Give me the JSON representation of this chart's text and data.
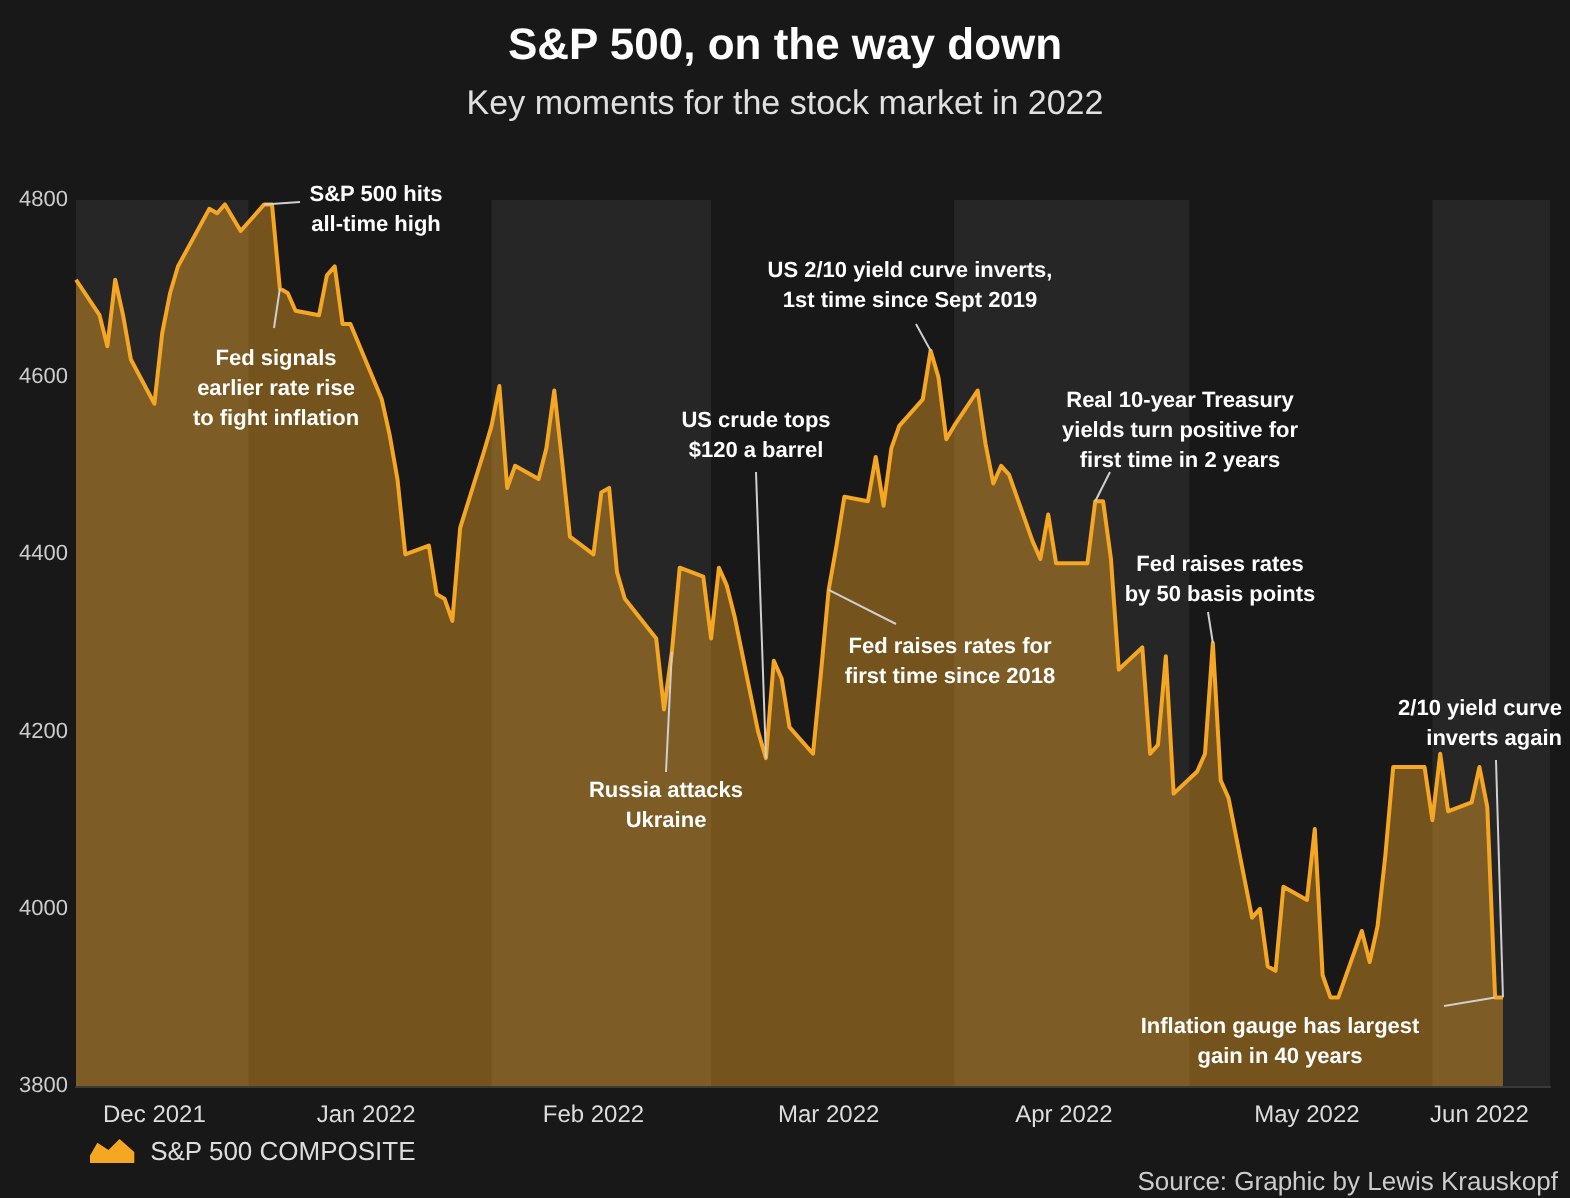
{
  "chart_data": {
    "type": "area",
    "title": "S&P 500, on the way down",
    "subtitle": "Key moments for the stock market in 2022",
    "x": [
      "2021-12-10",
      "2021-12-13",
      "2021-12-14",
      "2021-12-15",
      "2021-12-16",
      "2021-12-17",
      "2021-12-20",
      "2021-12-21",
      "2021-12-22",
      "2021-12-23",
      "2021-12-27",
      "2021-12-28",
      "2021-12-29",
      "2021-12-30",
      "2021-12-31",
      "2022-01-03",
      "2022-01-04",
      "2022-01-05",
      "2022-01-06",
      "2022-01-07",
      "2022-01-10",
      "2022-01-11",
      "2022-01-12",
      "2022-01-13",
      "2022-01-14",
      "2022-01-18",
      "2022-01-19",
      "2022-01-20",
      "2022-01-21",
      "2022-01-24",
      "2022-01-25",
      "2022-01-26",
      "2022-01-27",
      "2022-01-28",
      "2022-01-31",
      "2022-02-01",
      "2022-02-02",
      "2022-02-03",
      "2022-02-04",
      "2022-02-07",
      "2022-02-08",
      "2022-02-09",
      "2022-02-10",
      "2022-02-11",
      "2022-02-14",
      "2022-02-15",
      "2022-02-16",
      "2022-02-17",
      "2022-02-18",
      "2022-02-22",
      "2022-02-23",
      "2022-02-24",
      "2022-02-25",
      "2022-02-28",
      "2022-03-01",
      "2022-03-02",
      "2022-03-03",
      "2022-03-04",
      "2022-03-07",
      "2022-03-08",
      "2022-03-09",
      "2022-03-10",
      "2022-03-11",
      "2022-03-14",
      "2022-03-15",
      "2022-03-16",
      "2022-03-17",
      "2022-03-18",
      "2022-03-21",
      "2022-03-22",
      "2022-03-23",
      "2022-03-24",
      "2022-03-25",
      "2022-03-28",
      "2022-03-29",
      "2022-03-30",
      "2022-03-31",
      "2022-04-01",
      "2022-04-04",
      "2022-04-05",
      "2022-04-06",
      "2022-04-07",
      "2022-04-08",
      "2022-04-11",
      "2022-04-12",
      "2022-04-13",
      "2022-04-14",
      "2022-04-18",
      "2022-04-19",
      "2022-04-20",
      "2022-04-21",
      "2022-04-22",
      "2022-04-25",
      "2022-04-26",
      "2022-04-27",
      "2022-04-28",
      "2022-04-29",
      "2022-05-02",
      "2022-05-03",
      "2022-05-04",
      "2022-05-05",
      "2022-05-06",
      "2022-05-09",
      "2022-05-10",
      "2022-05-11",
      "2022-05-12",
      "2022-05-13",
      "2022-05-16",
      "2022-05-17",
      "2022-05-18",
      "2022-05-19",
      "2022-05-20",
      "2022-05-23",
      "2022-05-24",
      "2022-05-25",
      "2022-05-26",
      "2022-05-27",
      "2022-05-31",
      "2022-06-01",
      "2022-06-02",
      "2022-06-03",
      "2022-06-06",
      "2022-06-07",
      "2022-06-08",
      "2022-06-09",
      "2022-06-10"
    ],
    "series": [
      {
        "name": "S&P 500 COMPOSITE",
        "color": "#f5a623",
        "values": [
          4710,
          4670,
          4635,
          4710,
          4670,
          4620,
          4570,
          4650,
          4695,
          4725,
          4790,
          4785,
          4795,
          4780,
          4765,
          4795,
          4795,
          4700,
          4695,
          4675,
          4670,
          4715,
          4725,
          4660,
          4660,
          4575,
          4535,
          4485,
          4400,
          4410,
          4355,
          4350,
          4325,
          4430,
          4515,
          4545,
          4590,
          4475,
          4500,
          4485,
          4520,
          4585,
          4505,
          4420,
          4400,
          4470,
          4475,
          4380,
          4350,
          4305,
          4225,
          4290,
          4385,
          4375,
          4305,
          4385,
          4365,
          4330,
          4200,
          4170,
          4280,
          4260,
          4205,
          4175,
          4265,
          4360,
          4410,
          4465,
          4460,
          4510,
          4455,
          4520,
          4545,
          4575,
          4630,
          4600,
          4530,
          4545,
          4585,
          4525,
          4480,
          4500,
          4490,
          4415,
          4395,
          4445,
          4390,
          4390,
          4460,
          4460,
          4395,
          4270,
          4295,
          4175,
          4185,
          4285,
          4130,
          4155,
          4175,
          4300,
          4145,
          4125,
          3990,
          4000,
          3935,
          3930,
          4025,
          4010,
          4090,
          3925,
          3900,
          3900,
          3975,
          3940,
          3980,
          4060,
          4160,
          4160,
          4100,
          4175,
          4110,
          4120,
          4160,
          4115,
          3900,
          3900
        ]
      }
    ],
    "ylim": [
      3800,
      4800
    ],
    "yticks": [
      3800,
      4000,
      4200,
      4400,
      4600,
      4800
    ],
    "xlim": [
      "2021-12-10",
      "2022-06-16"
    ],
    "xticks": [
      {
        "value": "2021-12-20",
        "label": "Dec 2021"
      },
      {
        "value": "2022-01-16",
        "label": "Jan 2022"
      },
      {
        "value": "2022-02-14",
        "label": "Feb 2022"
      },
      {
        "value": "2022-03-16",
        "label": "Mar 2022"
      },
      {
        "value": "2022-04-15",
        "label": "Apr 2022"
      },
      {
        "value": "2022-05-16",
        "label": "May 2022"
      },
      {
        "value": "2022-06-07",
        "label": "Jun 2022"
      }
    ],
    "bands": [
      {
        "axis": "x",
        "from": "2021-12-10",
        "to": "2022-01-01",
        "color": "#262626"
      },
      {
        "axis": "x",
        "from": "2022-02-01",
        "to": "2022-03-01",
        "color": "#262626"
      },
      {
        "axis": "x",
        "from": "2022-04-01",
        "to": "2022-05-01",
        "color": "#262626"
      },
      {
        "axis": "x",
        "from": "2022-06-01",
        "to": "2022-06-16",
        "color": "#262626"
      }
    ],
    "annotations": [
      {
        "text": "S&P 500 hits\nall-time high",
        "x": "2022-01-03",
        "y": 4795
      },
      {
        "text": "Fed signals\nearlier rate rise\nto fight inflation",
        "x": "2022-01-05",
        "y": 4700
      },
      {
        "text": "Russia attacks\nUkraine",
        "x": "2022-02-24",
        "y": 4290
      },
      {
        "text": "US crude tops\n$120 a barrel",
        "x": "2022-03-08",
        "y": 4170
      },
      {
        "text": "Fed raises rates for\nfirst time since 2018",
        "x": "2022-03-16",
        "y": 4360
      },
      {
        "text": "US 2/10 yield curve inverts,\n1st time since Sept 2019",
        "x": "2022-03-29",
        "y": 4630
      },
      {
        "text": "Real 10-year Treasury\nyields turn positive for\nfirst time in 2 years",
        "x": "2022-04-19",
        "y": 4460
      },
      {
        "text": "Fed raises rates\nby 50 basis points",
        "x": "2022-05-04",
        "y": 4300
      },
      {
        "text": "2/10 yield curve\ninverts again",
        "x": "2022-06-10",
        "y": 3900
      },
      {
        "text": "Inflation gauge has largest\ngain in 40 years",
        "x": "2022-06-09",
        "y": 3900
      },
      "Source: Graphic by Lewis Krauskopf"
    ],
    "grid": false,
    "legend": "bottom left",
    "marker": "none"
  }
}
